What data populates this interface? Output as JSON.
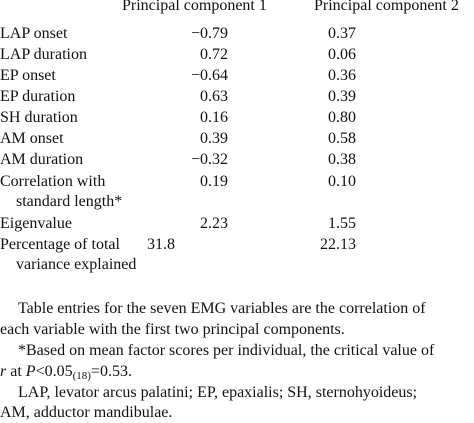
{
  "table": {
    "headers": [
      "Principal component 1",
      "Principal component 2"
    ],
    "rows": [
      {
        "label": "LAP onset",
        "label2": "",
        "pc1": "−0.79",
        "pc2": "0.37"
      },
      {
        "label": "LAP duration",
        "label2": "",
        "pc1": "0.72",
        "pc2": "0.06"
      },
      {
        "label": "EP onset",
        "label2": "",
        "pc1": "−0.64",
        "pc2": "0.36"
      },
      {
        "label": "EP duration",
        "label2": "",
        "pc1": "0.63",
        "pc2": "0.39"
      },
      {
        "label": "SH duration",
        "label2": "",
        "pc1": "0.16",
        "pc2": "0.80"
      },
      {
        "label": "AM onset",
        "label2": "",
        "pc1": "0.39",
        "pc2": "0.58"
      },
      {
        "label": "AM duration",
        "label2": "",
        "pc1": "−0.32",
        "pc2": "0.38"
      },
      {
        "label": "Correlation with",
        "label2": "standard length*",
        "pc1": "0.19",
        "pc2": "0.10"
      },
      {
        "label": "Eigenvalue",
        "label2": "",
        "pc1": "2.23",
        "pc2": "1.55"
      },
      {
        "label": "Percentage of total",
        "label2": "variance explained",
        "pc1": "31.8",
        "pc2": "22.13"
      }
    ]
  },
  "notes": {
    "note1_line1": "Table entries for the seven EMG variables are the correlation of",
    "note1_line2": "each variable with the first two principal components.",
    "note2_line1": "*Based on mean factor scores per individual, the critical value of",
    "note2_r": "r",
    "note2_at": " at ",
    "note2_P": "P",
    "note2_lt": "<0.05",
    "note2_sub": "(18)",
    "note2_eq": "=0.53.",
    "note3_line1": "LAP, levator arcus palatini; EP, epaxialis; SH, sternohyoideus;",
    "note3_line2": "AM, adductor mandibulae."
  }
}
